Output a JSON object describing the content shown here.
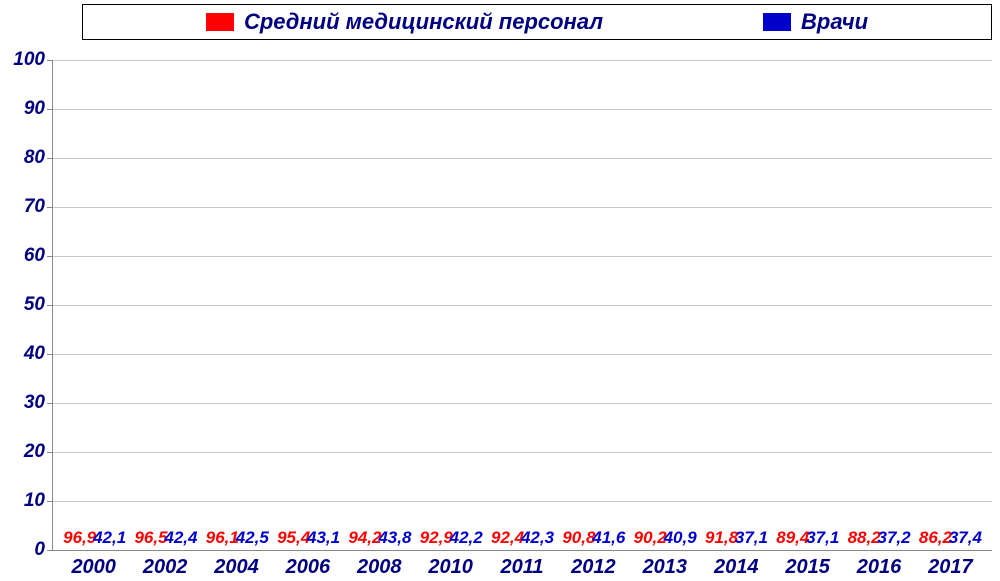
{
  "chart": {
    "type": "bar",
    "legend": {
      "series1": {
        "label": "Средний медицинский персонал",
        "color": "#ff0000"
      },
      "series2": {
        "label": "Врачи",
        "color": "#0000cc"
      }
    },
    "ylim": [
      0,
      100
    ],
    "ytick_step": 10,
    "grid_color": "#c8c8c8",
    "axis_color": "#888888",
    "label_color": "#000080",
    "background_color": "#ffffff",
    "categories": [
      "2000",
      "2002",
      "2004",
      "2006",
      "2008",
      "2010",
      "2011",
      "2012",
      "2013",
      "2014",
      "2015",
      "2016",
      "2017"
    ],
    "series1_values": [
      96.9,
      96.5,
      96.1,
      95.4,
      94.2,
      92.9,
      92.4,
      90.8,
      90.2,
      91.8,
      89.4,
      88.2,
      86.2
    ],
    "series1_labels": [
      "96,9",
      "96,5",
      "96,1",
      "95,4",
      "94,2",
      "92,9",
      "92,4",
      "90,8",
      "90,2",
      "91,8",
      "89,4",
      "88,2",
      "86,2"
    ],
    "series2_values": [
      42.1,
      42.4,
      42.5,
      43.1,
      43.8,
      42.2,
      42.3,
      41.6,
      40.9,
      37.1,
      37.1,
      37.2,
      37.4
    ],
    "series2_labels": [
      "42,1",
      "42,4",
      "42,5",
      "43,1",
      "43,8",
      "42,2",
      "42,3",
      "41,6",
      "40,9",
      "37,1",
      "37,1",
      "37,2",
      "37,4"
    ]
  }
}
